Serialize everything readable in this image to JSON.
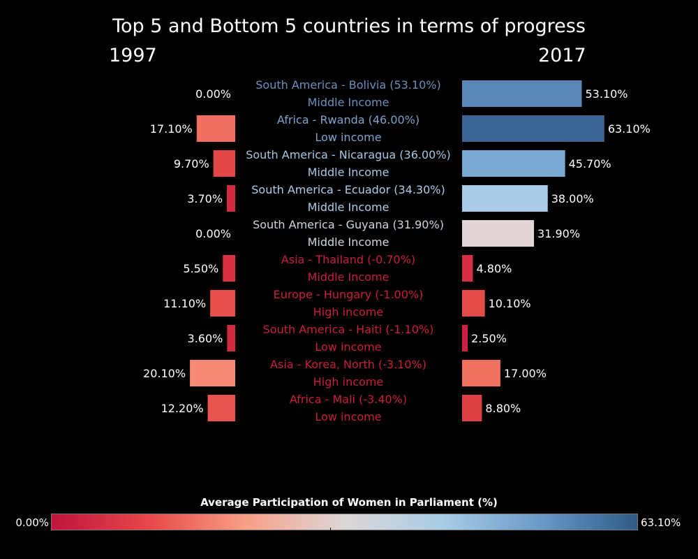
{
  "title": "Top 5 and Bottom 5 countries in terms of progress",
  "year_left": "1997",
  "year_right": "2017",
  "legend": {
    "title": "Average Participation of Women in Parliament (%)",
    "min_label": "0.00%",
    "max_label": "63.10%",
    "colors": [
      "#c0143c",
      "#e8474a",
      "#f8a088",
      "#ddd8d8",
      "#a8cde6",
      "#6b9ac8",
      "#2f5a88"
    ]
  },
  "chart_data": {
    "type": "bar",
    "title": "Top 5 and Bottom 5 countries in terms of progress",
    "categories": [
      "Bolivia",
      "Rwanda",
      "Nicaragua",
      "Ecuador",
      "Guyana",
      "Thailand",
      "Hungary",
      "Haiti",
      "Korea, North",
      "Mali"
    ],
    "rows": [
      {
        "label": "South America  - Bolivia  (53.10%)",
        "income": "Middle Income",
        "label_color": "#6b90bd",
        "v1997": 0.0,
        "t1997": "0.00%",
        "v2017": 53.1,
        "t2017": "53.10%",
        "c1997": "#c0143c",
        "c2017": "#5b87b7"
      },
      {
        "label": "Africa  - Rwanda  (46.00%)",
        "income": "Low income",
        "label_color": "#7ea3cc",
        "v1997": 17.1,
        "t1997": "17.10%",
        "v2017": 63.1,
        "t2017": "63.10%",
        "c1997": "#f07060",
        "c2017": "#3c6595"
      },
      {
        "label": "South America  - Nicaragua  (36.00%)",
        "income": "Middle Income",
        "label_color": "#a6c6e2",
        "v1997": 9.7,
        "t1997": "9.70%",
        "v2017": 45.7,
        "t2017": "45.70%",
        "c1997": "#e24647",
        "c2017": "#78a9d4"
      },
      {
        "label": "South America  - Ecuador  (34.30%)",
        "income": "Middle Income",
        "label_color": "#aecde6",
        "v1997": 3.7,
        "t1997": "3.70%",
        "v2017": 38.0,
        "t2017": "38.00%",
        "c1997": "#d32a40",
        "c2017": "#a9cde8"
      },
      {
        "label": "South America  - Guyana  (31.90%)",
        "income": "Middle Income",
        "label_color": "#cfd6de",
        "v1997": 0.0,
        "t1997": "0.00%",
        "v2017": 31.9,
        "t2017": "31.90%",
        "c1997": "#c0143c",
        "c2017": "#e2d6d6"
      },
      {
        "label": "Asia  - Thailand  (-0.70%)",
        "income": "Middle Income",
        "label_color": "#c81e3c",
        "v1997": 5.5,
        "t1997": "5.50%",
        "v2017": 4.8,
        "t2017": "4.80%",
        "c1997": "#d93042",
        "c2017": "#d72e42"
      },
      {
        "label": "Europe  - Hungary  (-1.00%)",
        "income": "High income",
        "label_color": "#c81e3c",
        "v1997": 11.1,
        "t1997": "11.10%",
        "v2017": 10.1,
        "t2017": "10.10%",
        "c1997": "#e64f4c",
        "c2017": "#e34a4a"
      },
      {
        "label": "South America  - Haiti  (-1.10%)",
        "income": "Low income",
        "label_color": "#c81e3c",
        "v1997": 3.6,
        "t1997": "3.60%",
        "v2017": 2.5,
        "t2017": "2.50%",
        "c1997": "#d32a40",
        "c2017": "#cc1f3f"
      },
      {
        "label": "Asia  - Korea, North  (-3.10%)",
        "income": "High income",
        "label_color": "#c81e3c",
        "v1997": 20.1,
        "t1997": "20.10%",
        "v2017": 17.0,
        "t2017": "17.00%",
        "c1997": "#f68a74",
        "c2017": "#f1725f"
      },
      {
        "label": "Africa  - Mali  (-3.40%)",
        "income": "Low income",
        "label_color": "#c81e3c",
        "v1997": 12.2,
        "t1997": "12.20%",
        "v2017": 8.8,
        "t2017": "8.80%",
        "c1997": "#e8534d",
        "c2017": "#df4046"
      }
    ]
  }
}
